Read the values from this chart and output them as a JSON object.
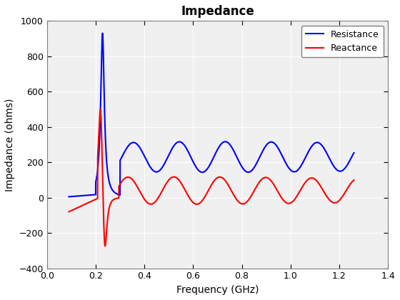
{
  "title": "Impedance",
  "xlabel": "Frequency (GHz)",
  "ylabel": "Impedance (ohms)",
  "xlim": [
    0,
    1.4
  ],
  "ylim": [
    -400,
    1000
  ],
  "xticks": [
    0,
    0.2,
    0.4,
    0.6,
    0.8,
    1.0,
    1.2,
    1.4
  ],
  "yticks": [
    -400,
    -200,
    0,
    200,
    400,
    600,
    800,
    1000
  ],
  "resistance_color": "#0000FF",
  "reactance_color": "#FF0000",
  "line_width": 1.5,
  "legend_labels": [
    "Resistance",
    "Reactance"
  ],
  "axes_bg_color": "#F0F0F0",
  "fig_bg_color": "#FFFFFF",
  "grid_color": "#FFFFFF",
  "title_fontsize": 12,
  "label_fontsize": 10
}
